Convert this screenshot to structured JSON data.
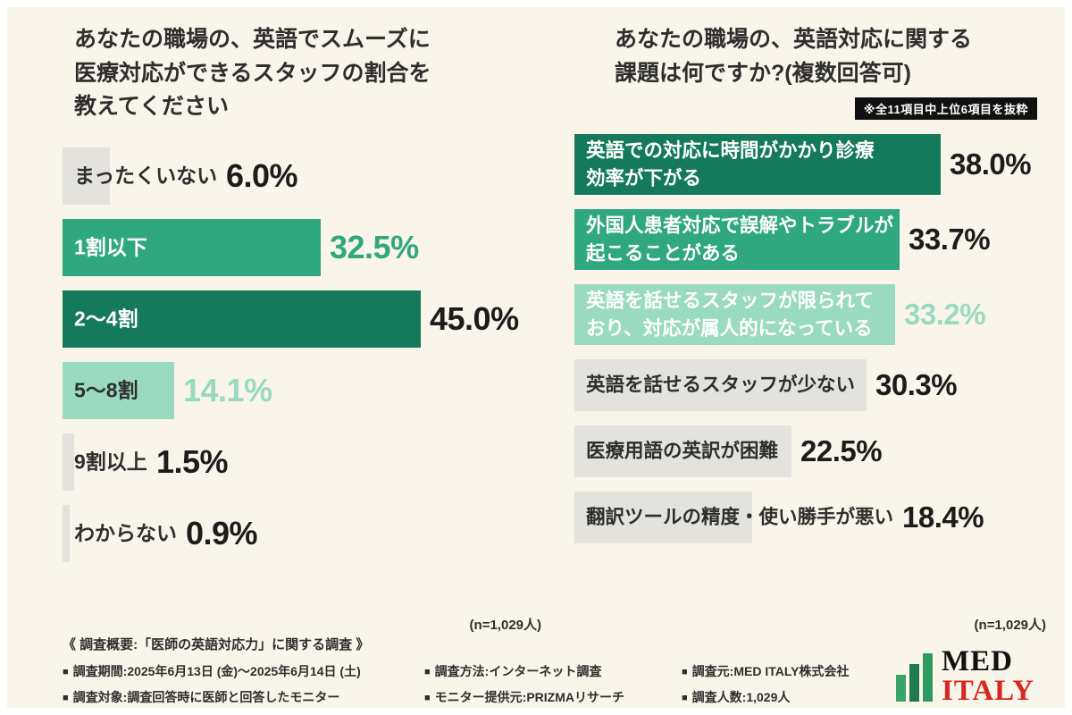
{
  "colors": {
    "background": "#FAF5EA",
    "bar_dark_green": "#15795C",
    "bar_green": "#2FA880",
    "bar_light_green": "#99DAC0",
    "bar_gray": "#E4E2DD",
    "text_dark": "#2E2E2E",
    "pct_dark": "#1C1C1C",
    "badge_bg": "#111111",
    "logo_red": "#D7281E",
    "logo_black": "#111111"
  },
  "chart_data": [
    {
      "type": "bar",
      "orientation": "horizontal",
      "title": "あなたの職場の、英語でスムーズに医療対応ができるスタッフの割合を教えてください",
      "title_lines": [
        "あなたの職場の、英語でスムーズに",
        "医療対応ができるスタッフの割合を",
        "教えてください"
      ],
      "categories": [
        "まったくいない",
        "1割以下",
        "2〜4割",
        "5〜8割",
        "9割以上",
        "わからない"
      ],
      "values": [
        6.0,
        32.5,
        45.0,
        14.1,
        1.5,
        0.9
      ],
      "value_labels": [
        "6.0%",
        "32.5%",
        "45.0%",
        "14.1%",
        "1.5%",
        "0.9%"
      ],
      "xlim": [
        0,
        50
      ],
      "grid": false,
      "bar_styles": [
        "gray",
        "green",
        "darkgreen",
        "lightgreen",
        "gray",
        "gray"
      ],
      "label_styles": [
        "dark",
        "white",
        "white",
        "dark",
        "dark",
        "dark"
      ],
      "pct_styles": [
        "dark",
        "green",
        "dark",
        "lightgreen",
        "dark",
        "dark"
      ],
      "n_label": "(n=1,029人)"
    },
    {
      "type": "bar",
      "orientation": "horizontal",
      "title": "あなたの職場の、英語対応に関する課題は何ですか?(複数回答可)",
      "title_lines": [
        "あなたの職場の、英語対応に関する",
        "課題は何ですか?(複数回答可)"
      ],
      "note": "※全11項目中上位6項目を抜粋",
      "categories": [
        "英語での対応に時間がかかり診療効率が下がる",
        "外国人患者対応で誤解やトラブルが起こることがある",
        "英語を話せるスタッフが限られており、対応が属人的になっている",
        "英語を話せるスタッフが少ない",
        "医療用語の英訳が困難",
        "翻訳ツールの精度・使い勝手が悪い"
      ],
      "category_lines": [
        [
          "英語での対応に時間がかかり診療",
          "効率が下がる"
        ],
        [
          "外国人患者対応で誤解やトラブルが",
          "起こることがある"
        ],
        [
          "英語を話せるスタッフが限られて",
          "おり、対応が属人的になっている"
        ],
        [
          "英語を話せるスタッフが少ない"
        ],
        [
          "医療用語の英訳が困難"
        ],
        [
          "翻訳ツールの精度・使い勝手が悪い"
        ]
      ],
      "values": [
        38.0,
        33.7,
        33.2,
        30.3,
        22.5,
        18.4
      ],
      "value_labels": [
        "38.0%",
        "33.7%",
        "33.2%",
        "30.3%",
        "22.5%",
        "18.4%"
      ],
      "xlim": [
        0,
        45
      ],
      "grid": false,
      "bar_styles": [
        "darkgreen",
        "green",
        "lightgreen",
        "gray",
        "gray",
        "gray"
      ],
      "label_styles": [
        "white",
        "white",
        "white",
        "dark",
        "dark",
        "dark"
      ],
      "pct_styles": [
        "dark",
        "dark",
        "lightgreen",
        "dark",
        "dark",
        "dark"
      ],
      "n_label": "(n=1,029人)"
    }
  ],
  "footer": {
    "survey_title": "《 調査概要:「医師の英語対応力」に関する調査 》",
    "bullet": "■",
    "items_row1": [
      "調査期間:2025年6月13日 (金)〜2025年6月14日 (土)",
      "調査方法:インターネット調査",
      "調査元:MED ITALY株式会社"
    ],
    "items_row2": [
      "調査対象:調査回答時に医師と回答したモニター",
      "モニター提供元:PRIZMAリサーチ",
      "調査人数:1,029人"
    ],
    "logo": {
      "line1": "MED",
      "line2": "ITALY"
    }
  }
}
